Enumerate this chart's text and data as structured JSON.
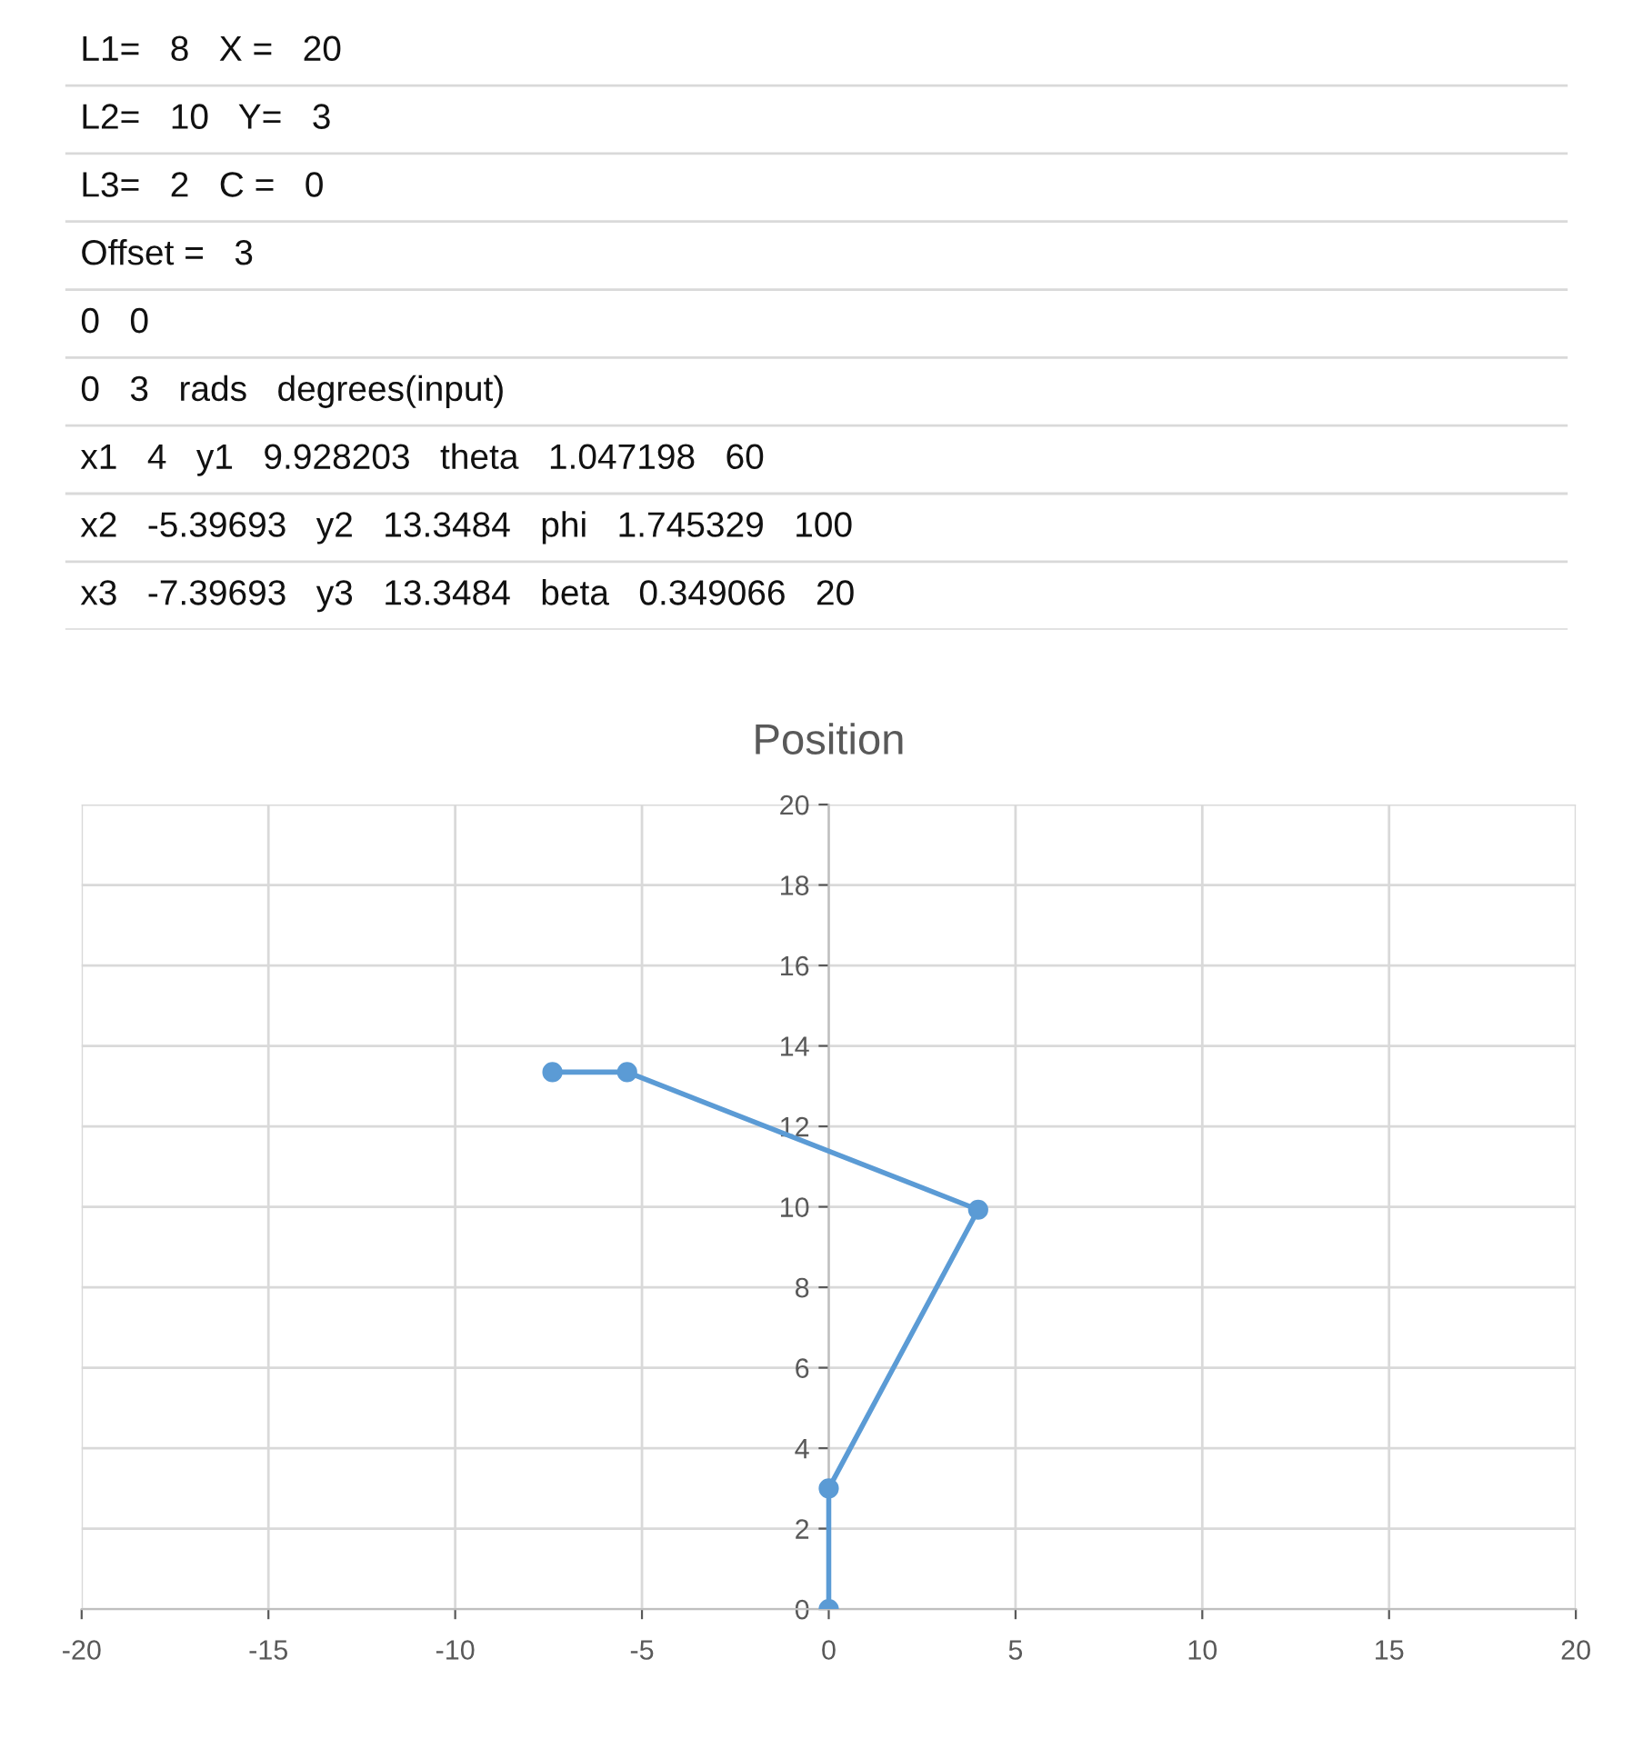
{
  "chart_data": [
    {
      "type": "other",
      "annotations": [
        "L1=   8   X =   20",
        "L2=   10   Y=   3",
        "L3=   2   C =   0",
        "Offset =   3",
        "0   0",
        "0   3   rads   degrees(input)",
        "x1   4   y1   9.928203   theta   1.047198   60",
        "x2   -5.39693   y2   13.3484   phi   1.745329   100",
        "x3   -7.39693   y3   13.3484   beta   0.349066   20"
      ]
    },
    {
      "type": "line",
      "title": "Position",
      "series": [
        {
          "x": [
            0,
            0,
            4,
            -5.39693,
            -7.39693
          ],
          "values": [
            0,
            3,
            9.928203,
            13.3484,
            13.3484
          ],
          "color": "#5b9bd5"
        }
      ],
      "xlim": [
        -20,
        20
      ],
      "xticks": [
        -20,
        -15,
        -10,
        -5,
        0,
        5,
        10,
        15,
        20
      ],
      "ylim": [
        0,
        20
      ],
      "yticks": [
        0,
        2,
        4,
        6,
        8,
        10,
        12,
        14,
        16,
        18,
        20
      ],
      "grid": true,
      "marker": "circle",
      "line_style": "solid"
    }
  ]
}
